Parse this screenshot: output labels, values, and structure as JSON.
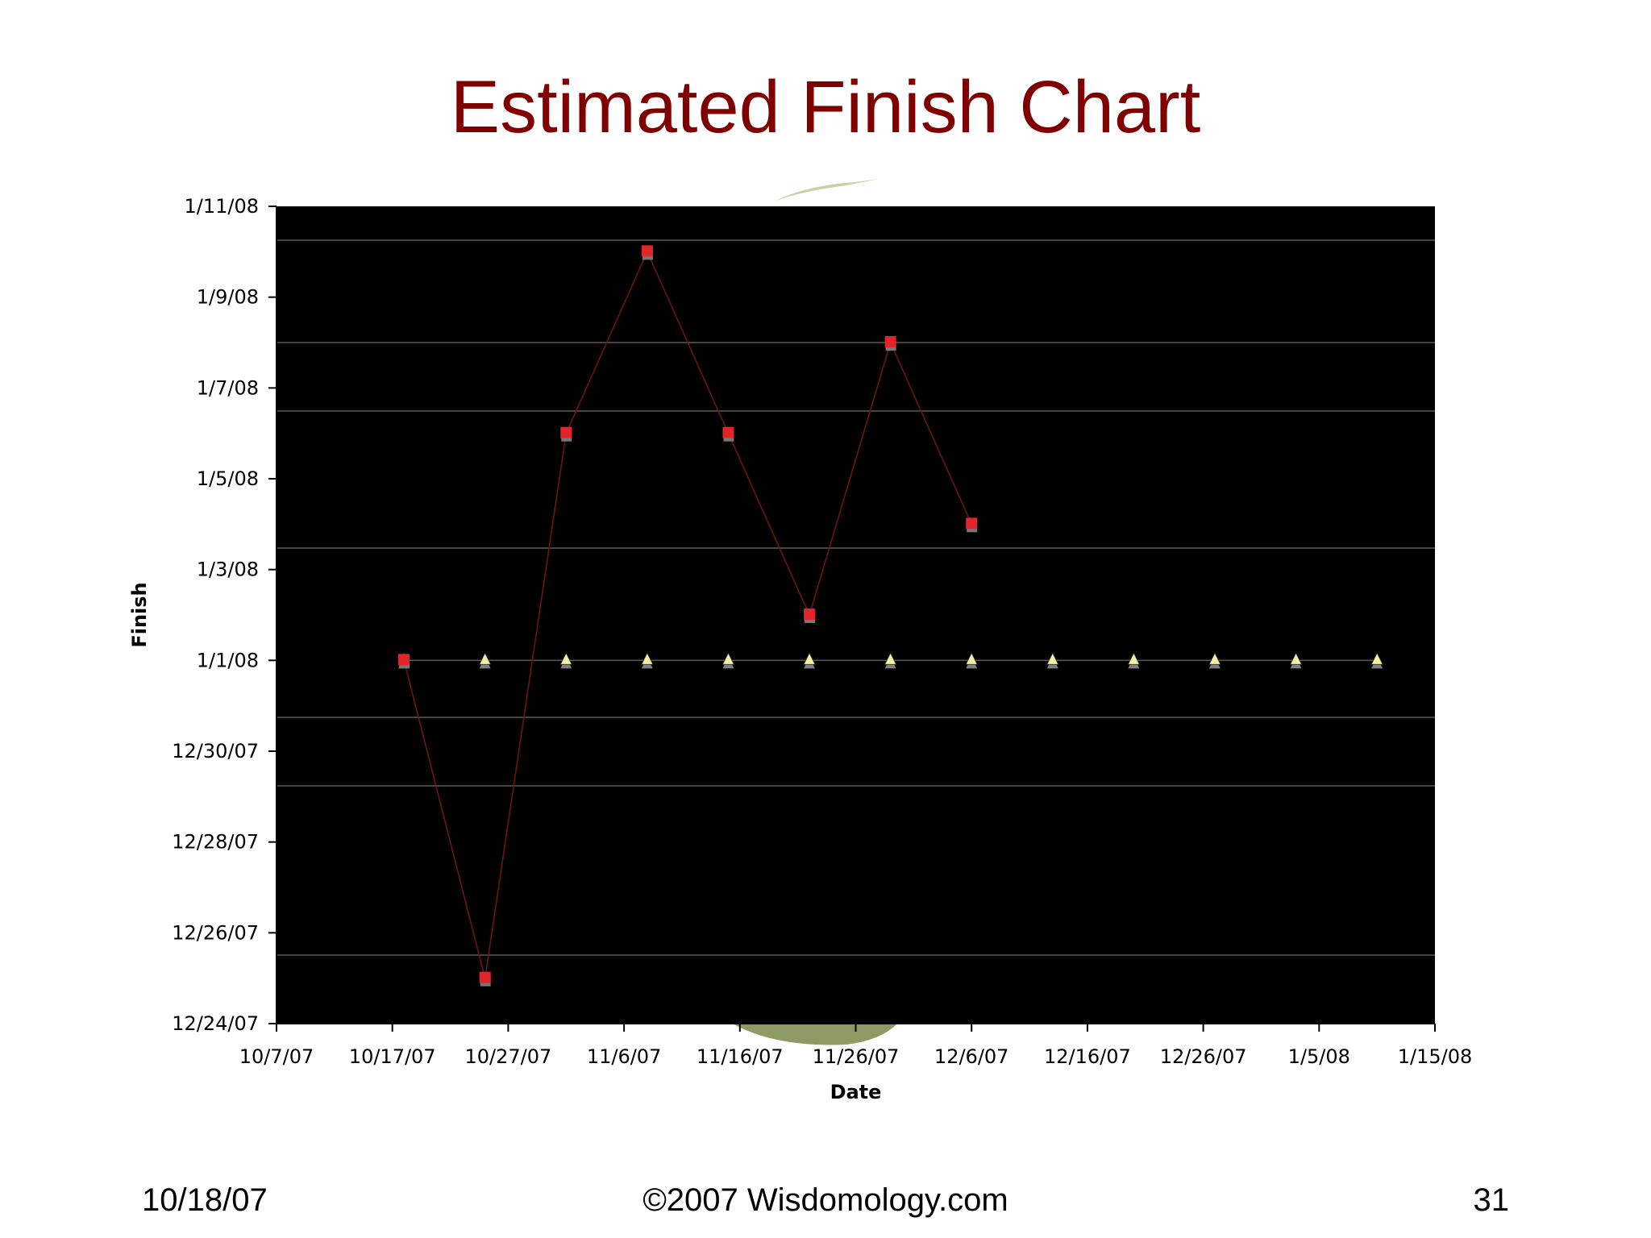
{
  "slide": {
    "title": "Estimated Finish Chart",
    "footer_date": "10/18/07",
    "footer_copyright": "©2007 Wisdomology.com",
    "page_number": "31"
  },
  "chart_data": {
    "type": "scatter",
    "title": "",
    "xlabel": "Date",
    "ylabel": "Finish",
    "x_scale": "date",
    "y_scale": "date",
    "xlim": [
      "10/7/07",
      "1/15/08"
    ],
    "ylim": [
      "12/24/07",
      "1/11/08"
    ],
    "x_ticks": [
      "10/7/07",
      "10/17/07",
      "10/27/07",
      "11/6/07",
      "11/16/07",
      "11/26/07",
      "12/6/07",
      "12/16/07",
      "12/26/07",
      "1/5/08",
      "1/15/08"
    ],
    "y_ticks": [
      "12/24/07",
      "12/26/07",
      "12/28/07",
      "12/30/07",
      "1/1/08",
      "1/3/08",
      "1/5/08",
      "1/7/08",
      "1/9/08",
      "1/11/08"
    ],
    "grid": false,
    "plot_background": "#000000",
    "series": [
      {
        "marker": "square",
        "color": "#e0252b",
        "line_color": "#6b1515",
        "connected": true,
        "points": [
          {
            "x": "10/18/07",
            "y": "1/1/08"
          },
          {
            "x": "10/25/07",
            "y": "12/25/07"
          },
          {
            "x": "11/1/07",
            "y": "1/6/08"
          },
          {
            "x": "11/8/07",
            "y": "1/10/08"
          },
          {
            "x": "11/15/07",
            "y": "1/6/08"
          },
          {
            "x": "11/22/07",
            "y": "1/2/08"
          },
          {
            "x": "11/29/07",
            "y": "1/8/08"
          },
          {
            "x": "12/6/07",
            "y": "1/4/08"
          }
        ]
      },
      {
        "marker": "triangle",
        "color": "#f2f0a0",
        "line_color": "#555555",
        "connected": true,
        "points": [
          {
            "x": "10/18/07",
            "y": "1/1/08"
          },
          {
            "x": "10/25/07",
            "y": "1/1/08"
          },
          {
            "x": "11/1/07",
            "y": "1/1/08"
          },
          {
            "x": "11/8/07",
            "y": "1/1/08"
          },
          {
            "x": "11/15/07",
            "y": "1/1/08"
          },
          {
            "x": "11/22/07",
            "y": "1/1/08"
          },
          {
            "x": "11/29/07",
            "y": "1/1/08"
          },
          {
            "x": "12/6/07",
            "y": "1/1/08"
          },
          {
            "x": "12/13/07",
            "y": "1/1/08"
          },
          {
            "x": "12/20/07",
            "y": "1/1/08"
          },
          {
            "x": "12/27/07",
            "y": "1/1/08"
          },
          {
            "x": "1/3/08",
            "y": "1/1/08"
          },
          {
            "x": "1/10/08",
            "y": "1/1/08"
          }
        ]
      }
    ]
  }
}
